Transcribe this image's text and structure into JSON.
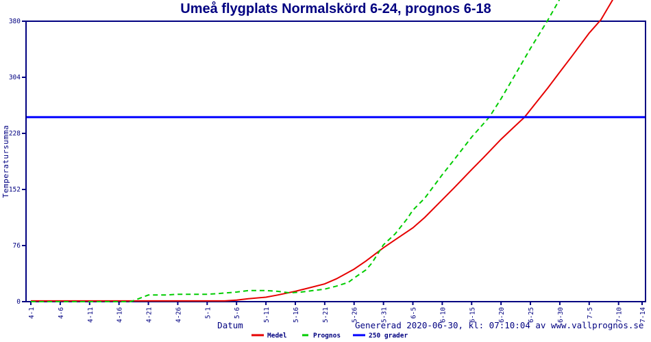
{
  "title": "Umeå flygplats Normalskörd 6-24, prognos 6-18",
  "axes": {
    "x_label": "Datum",
    "y_label": "Temperatursumma"
  },
  "footer": {
    "generated": "Genererad 2020-06-30, kl: 07:10:04 av www.vallprognos.se"
  },
  "colors": {
    "text": "#000080",
    "axis": "#000080",
    "medel": "#e60000",
    "prognos": "#00cc00",
    "ref": "#0000ff"
  },
  "chart_data": {
    "type": "line",
    "title": "Umeå flygplats Normalskörd 6-24, prognos 6-18",
    "xlabel": "Datum",
    "ylabel": "Temperatursumma",
    "ylim": [
      0,
      380
    ],
    "y_ticks": [
      0,
      76,
      152,
      228,
      304,
      380
    ],
    "x_ticks": [
      "4-1",
      "4-6",
      "4-11",
      "4-16",
      "4-21",
      "4-26",
      "5-1",
      "5-6",
      "5-11",
      "5-16",
      "5-21",
      "5-26",
      "5-31",
      "6-5",
      "6-10",
      "6-15",
      "6-20",
      "6-25",
      "6-30",
      "7-5",
      "7-10",
      "7-14"
    ],
    "grid": false,
    "legend_position": "bottom",
    "ref_line": {
      "label": "250 grader",
      "value": 250,
      "color": "#0000ff"
    },
    "series": [
      {
        "name": "Medel",
        "color": "#e60000",
        "style": "solid",
        "points": [
          [
            "4-1",
            1
          ],
          [
            "4-6",
            1
          ],
          [
            "4-11",
            1
          ],
          [
            "4-16",
            1
          ],
          [
            "4-21",
            1
          ],
          [
            "4-26",
            1
          ],
          [
            "5-1",
            1
          ],
          [
            "5-4",
            1
          ],
          [
            "5-6",
            2
          ],
          [
            "5-8",
            4
          ],
          [
            "5-11",
            6
          ],
          [
            "5-13",
            9
          ],
          [
            "5-16",
            14
          ],
          [
            "5-18",
            18
          ],
          [
            "5-21",
            24
          ],
          [
            "5-23",
            31
          ],
          [
            "5-26",
            44
          ],
          [
            "5-28",
            55
          ],
          [
            "5-31",
            73
          ],
          [
            "6-2",
            84
          ],
          [
            "6-5",
            100
          ],
          [
            "6-7",
            114
          ],
          [
            "6-10",
            138
          ],
          [
            "6-12",
            154
          ],
          [
            "6-15",
            179
          ],
          [
            "6-17",
            195
          ],
          [
            "6-20",
            220
          ],
          [
            "6-22",
            235
          ],
          [
            "6-24",
            250
          ],
          [
            "6-26",
            270
          ],
          [
            "6-28",
            290
          ],
          [
            "6-30",
            311
          ],
          [
            "7-2",
            332
          ],
          [
            "7-5",
            364
          ],
          [
            "7-7",
            382
          ],
          [
            "7-9",
            409
          ]
        ]
      },
      {
        "name": "Prognos",
        "color": "#00cc00",
        "style": "dashed",
        "points": [
          [
            "4-1",
            0
          ],
          [
            "4-6",
            0
          ],
          [
            "4-11",
            0
          ],
          [
            "4-16",
            0
          ],
          [
            "4-18",
            0
          ],
          [
            "4-19",
            3
          ],
          [
            "4-21",
            9
          ],
          [
            "4-24",
            9
          ],
          [
            "4-26",
            10
          ],
          [
            "5-1",
            10
          ],
          [
            "5-3",
            11
          ],
          [
            "5-6",
            13
          ],
          [
            "5-8",
            15
          ],
          [
            "5-11",
            15
          ],
          [
            "5-13",
            14
          ],
          [
            "5-15",
            12
          ],
          [
            "5-17",
            13
          ],
          [
            "5-19",
            15
          ],
          [
            "5-21",
            17
          ],
          [
            "5-23",
            21
          ],
          [
            "5-25",
            26
          ],
          [
            "5-26",
            32
          ],
          [
            "5-28",
            43
          ],
          [
            "5-29",
            52
          ],
          [
            "5-31",
            77
          ],
          [
            "6-2",
            92
          ],
          [
            "6-4",
            112
          ],
          [
            "6-5",
            124
          ],
          [
            "6-7",
            140
          ],
          [
            "6-10",
            172
          ],
          [
            "6-12",
            192
          ],
          [
            "6-15",
            223
          ],
          [
            "6-18",
            250
          ],
          [
            "6-20",
            275
          ],
          [
            "6-22",
            302
          ],
          [
            "6-25",
            343
          ],
          [
            "6-28",
            382
          ],
          [
            "6-30",
            410
          ]
        ]
      }
    ]
  }
}
